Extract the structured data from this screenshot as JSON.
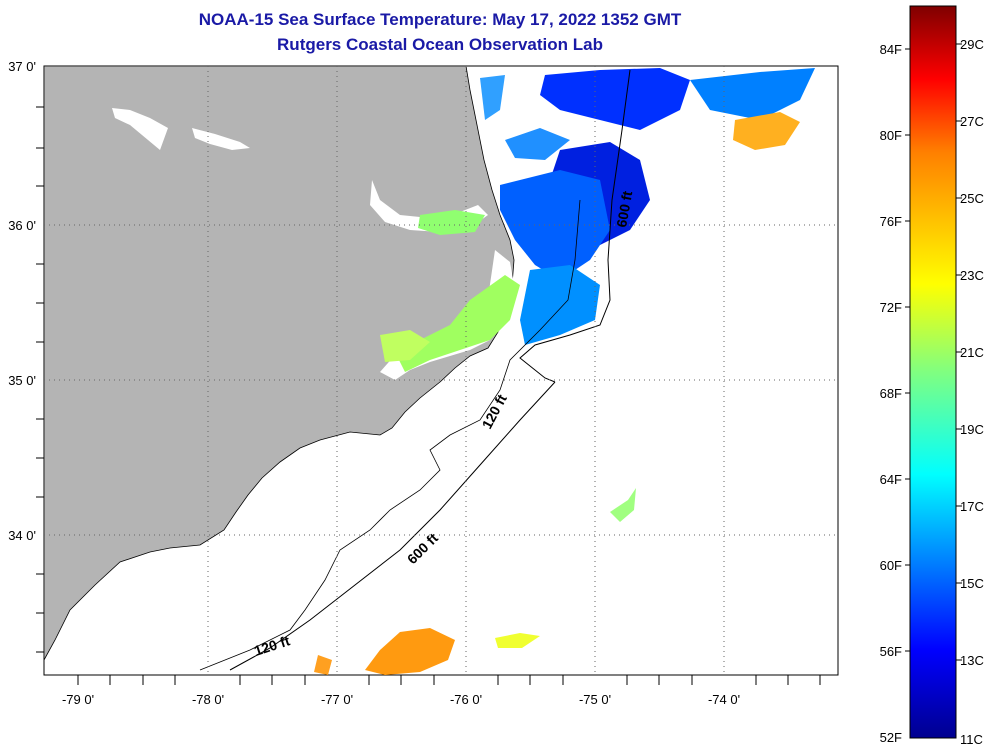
{
  "header": {
    "title": "NOAA-15 Sea Surface Temperature:  May 17, 2022 1352 GMT",
    "subtitle": "Rutgers Coastal Ocean Observation Lab"
  },
  "map": {
    "lat_labels": [
      "37 0'",
      "36 0'",
      "35 0'",
      "34 0'"
    ],
    "lon_labels": [
      "-79 0'",
      "-78 0'",
      "-77 0'",
      "-76 0'",
      "-75 0'",
      "-74 0'"
    ],
    "contours": [
      {
        "label": "600 ft"
      },
      {
        "label": "120 ft"
      },
      {
        "label": "600 ft"
      },
      {
        "label": "120 ft"
      }
    ],
    "colors": {
      "land": "#b4b4b4",
      "ocean": "#ffffff",
      "grid": "#666666"
    }
  },
  "colorbar": {
    "fahrenheit": [
      "84F",
      "80F",
      "76F",
      "72F",
      "68F",
      "64F",
      "60F",
      "56F",
      "52F"
    ],
    "celsius": [
      "29C",
      "27C",
      "25C",
      "23C",
      "21C",
      "19C",
      "17C",
      "15C",
      "13C",
      "11C"
    ],
    "colors": [
      "#7f0000",
      "#ff0000",
      "#ff8000",
      "#ffff00",
      "#80ff80",
      "#00ffff",
      "#0080ff",
      "#0000ff",
      "#00008f"
    ]
  }
}
